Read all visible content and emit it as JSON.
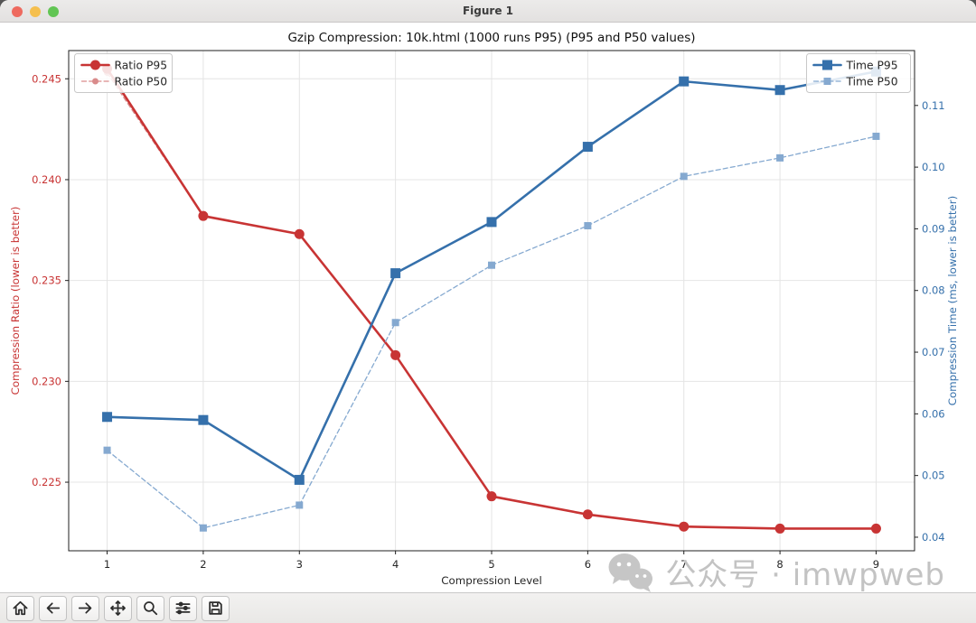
{
  "window": {
    "title": "Figure 1",
    "controls": [
      "close",
      "minimize",
      "zoom"
    ],
    "control_colors": {
      "close": "#ee6a5f",
      "minimize": "#f5bf4e",
      "zoom": "#62c554"
    }
  },
  "toolbar": {
    "buttons": [
      {
        "name": "home"
      },
      {
        "name": "back"
      },
      {
        "name": "forward"
      },
      {
        "name": "pan"
      },
      {
        "name": "zoom-to-rect"
      },
      {
        "name": "configure-subplots"
      },
      {
        "name": "save"
      }
    ]
  },
  "watermark": {
    "text": "公众号 · imwpweb",
    "icon": "wechat-icon",
    "color": "#c3c3c3"
  },
  "chart_data": {
    "type": "line",
    "title": "Gzip Compression: 10k.html (1000 runs P95) (P95 and P50 values)",
    "xlabel": "Compression Level",
    "ylabel_left": "Compression Ratio (lower is better)",
    "ylabel_right": "Compression Time (ms, lower is better)",
    "axis_color_left": "#c83434",
    "axis_color_right": "#3570ab",
    "grid": true,
    "x": [
      1,
      2,
      3,
      4,
      5,
      6,
      7,
      8,
      9
    ],
    "xticks": [
      "1",
      "2",
      "3",
      "4",
      "5",
      "6",
      "7",
      "8",
      "9"
    ],
    "xlim": [
      0.6,
      9.4
    ],
    "ylim_left": [
      0.2216,
      0.2464
    ],
    "ylim_right": [
      0.0378,
      0.1189
    ],
    "yticks_left": [
      "0.225",
      "0.230",
      "0.235",
      "0.240",
      "0.245"
    ],
    "yticks_right": [
      "0.04",
      "0.05",
      "0.06",
      "0.07",
      "0.08",
      "0.09",
      "0.10",
      "0.11"
    ],
    "series": [
      {
        "name": "Ratio P50",
        "axis": "left",
        "color": "#d98b8b",
        "line": "dashed",
        "marker": "circle",
        "marker_size": 3.5,
        "line_width": 1.3,
        "values": [
          0.2453,
          0.2382,
          0.2373,
          0.2313,
          0.2243,
          0.2234,
          0.2228,
          0.2227,
          0.2227
        ]
      },
      {
        "name": "Ratio P95",
        "axis": "left",
        "color": "#c83434",
        "line": "solid",
        "marker": "circle",
        "marker_size": 5.5,
        "line_width": 2.6,
        "values": [
          0.2455,
          0.2382,
          0.2373,
          0.2313,
          0.2243,
          0.2234,
          0.2228,
          0.2227,
          0.2227
        ]
      },
      {
        "name": "Time P50",
        "axis": "right",
        "color": "#85a9d0",
        "line": "dashed",
        "marker": "square",
        "marker_size": 4.0,
        "line_width": 1.3,
        "values": [
          0.0541,
          0.0415,
          0.0452,
          0.0748,
          0.0841,
          0.0905,
          0.0985,
          0.1015,
          0.105
        ]
      },
      {
        "name": "Time P95",
        "axis": "right",
        "color": "#3570ab",
        "line": "solid",
        "marker": "square",
        "marker_size": 5.5,
        "line_width": 2.6,
        "values": [
          0.0595,
          0.059,
          0.0493,
          0.0828,
          0.0911,
          0.1033,
          0.1139,
          0.1125,
          0.1155
        ]
      }
    ],
    "legends": [
      {
        "side": "left",
        "entries": [
          "Ratio P95",
          "Ratio P50"
        ]
      },
      {
        "side": "right",
        "entries": [
          "Time P95",
          "Time P50"
        ]
      }
    ]
  }
}
